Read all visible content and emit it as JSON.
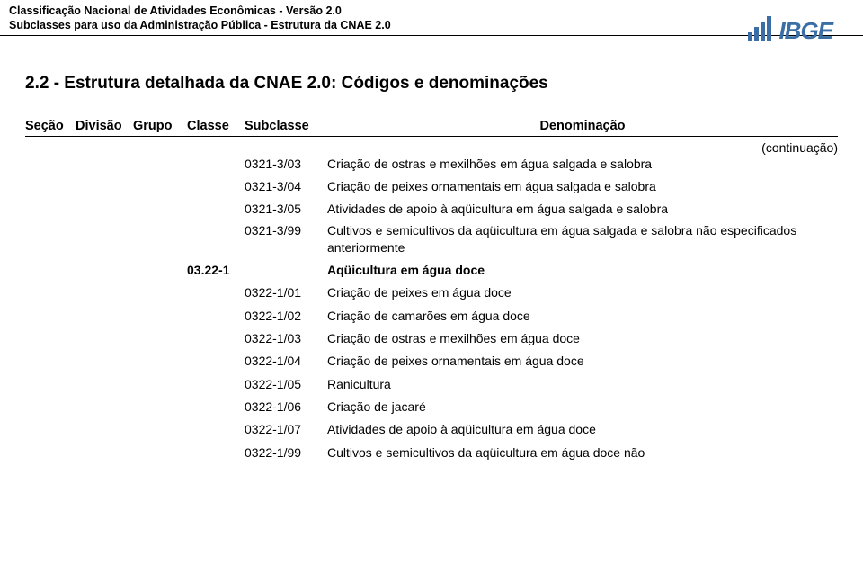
{
  "header": {
    "line1": "Classificação Nacional de Atividades Econômicas - Versão 2.0",
    "line2": "Subclasses para uso da Administração Pública - Estrutura da CNAE 2.0"
  },
  "logo": {
    "text": "IBGE"
  },
  "title": "2.2 - Estrutura detalhada da CNAE 2.0: Códigos e denominações",
  "continuation": "(continuação)",
  "columns": {
    "secao": "Seção",
    "divisao": "Divisão",
    "grupo": "Grupo",
    "classe": "Classe",
    "subclasse": "Subclasse",
    "denom": "Denominação"
  },
  "rows": [
    {
      "classe": "",
      "sub": "0321-3/03",
      "denom": "Criação de ostras e mexilhões em água salgada e salobra",
      "bold": false
    },
    {
      "classe": "",
      "sub": "0321-3/04",
      "denom": "Criação de peixes ornamentais em água salgada e salobra",
      "bold": false
    },
    {
      "classe": "",
      "sub": "0321-3/05",
      "denom": "Atividades de apoio à aqüicultura em água salgada e salobra",
      "bold": false
    },
    {
      "classe": "",
      "sub": "0321-3/99",
      "denom": "Cultivos e semicultivos da aqüicultura em água salgada e salobra não especificados anteriormente",
      "bold": false,
      "multi": true
    },
    {
      "classe": "03.22-1",
      "sub": "",
      "denom": "Aqüicultura em água doce",
      "bold": true
    },
    {
      "classe": "",
      "sub": "0322-1/01",
      "denom": "Criação de peixes em água doce",
      "bold": false
    },
    {
      "classe": "",
      "sub": "0322-1/02",
      "denom": "Criação de camarões em água doce",
      "bold": false
    },
    {
      "classe": "",
      "sub": "0322-1/03",
      "denom": "Criação de ostras e mexilhões em água doce",
      "bold": false
    },
    {
      "classe": "",
      "sub": "0322-1/04",
      "denom": "Criação de peixes ornamentais em água doce",
      "bold": false
    },
    {
      "classe": "",
      "sub": "0322-1/05",
      "denom": "Ranicultura",
      "bold": false
    },
    {
      "classe": "",
      "sub": "0322-1/06",
      "denom": "Criação de jacaré",
      "bold": false
    },
    {
      "classe": "",
      "sub": "0322-1/07",
      "denom": "Atividades de apoio à aqüicultura em água doce",
      "bold": false
    },
    {
      "classe": "",
      "sub": "0322-1/99",
      "denom": "Cultivos e semicultivos da aqüicultura em água doce não",
      "bold": false
    }
  ],
  "colors": {
    "text": "#000000",
    "logo": "#3a6ea5",
    "background": "#ffffff"
  },
  "typography": {
    "header_fontsize": 12.5,
    "title_fontsize": 19,
    "body_fontsize": 14,
    "th_fontsize": 14.5,
    "font_family": "Arial"
  }
}
